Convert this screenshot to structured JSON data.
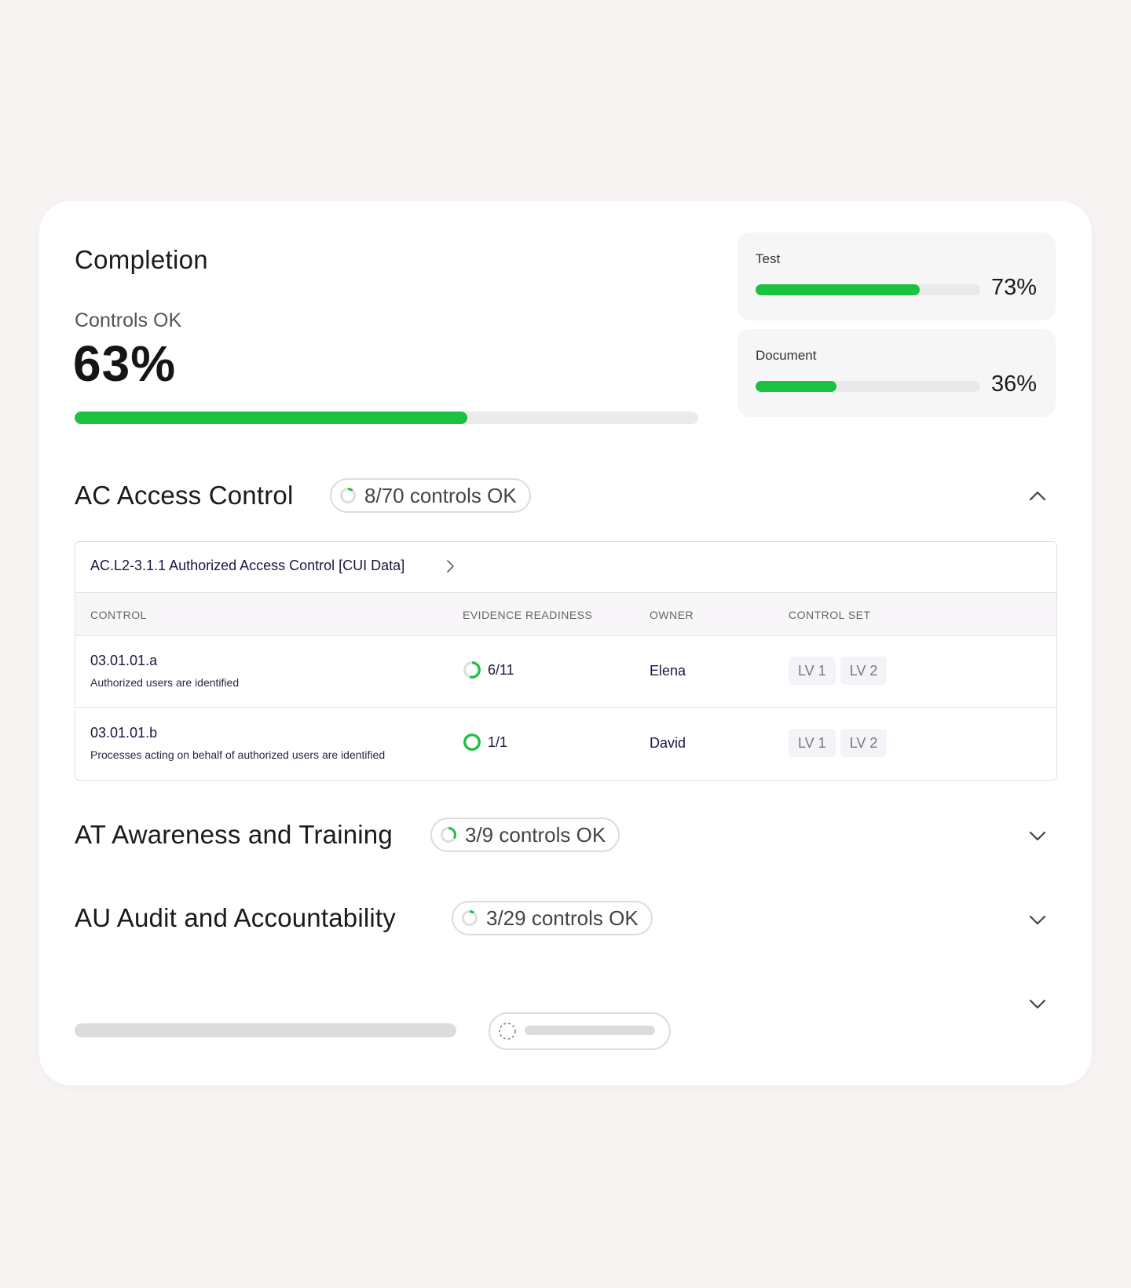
{
  "completion": {
    "title": "Completion",
    "controls_label": "Controls OK",
    "controls_value": "63%",
    "controls_fraction": 0.63
  },
  "stats": [
    {
      "label": "Test",
      "value": "73%",
      "fraction": 0.73
    },
    {
      "label": "Document",
      "value": "36%",
      "fraction": 0.36
    }
  ],
  "sections": [
    {
      "title": "AC Access Control",
      "badge": "8/70 controls OK",
      "fraction": 0.114,
      "expanded": true
    },
    {
      "title": "AT Awareness and Training",
      "badge": "3/9 controls OK",
      "fraction": 0.333,
      "expanded": false
    },
    {
      "title": "AU Audit and Accountability",
      "badge": "3/29 controls OK",
      "fraction": 0.103,
      "expanded": false
    }
  ],
  "requirement": {
    "label": "AC.L2-3.1.1 Authorized Access Control [CUI Data]"
  },
  "table": {
    "headers": [
      "CONTROL",
      "EVIDENCE READINESS",
      "OWNER",
      "CONTROL SET"
    ],
    "rows": [
      {
        "code": "03.01.01.a",
        "desc": "Authorized users are identified",
        "evidence": "6/11",
        "evidence_fraction": 0.545,
        "owner": "Elena",
        "sets": [
          "LV 1",
          "LV 2"
        ]
      },
      {
        "code": "03.01.01.b",
        "desc": "Processes acting on behalf of authorized users are identified",
        "evidence": "1/1",
        "evidence_fraction": 1.0,
        "owner": "David",
        "sets": [
          "LV 1",
          "LV 2"
        ]
      }
    ]
  },
  "icons": {
    "collapse": "chevron-up-icon",
    "expand": "chevron-down-icon",
    "breadcrumb": "chevron-right-icon",
    "progress": "progress-ring-icon"
  },
  "colors": {
    "accent_green": "#1bc140",
    "track_gray": "#ebebeb"
  }
}
